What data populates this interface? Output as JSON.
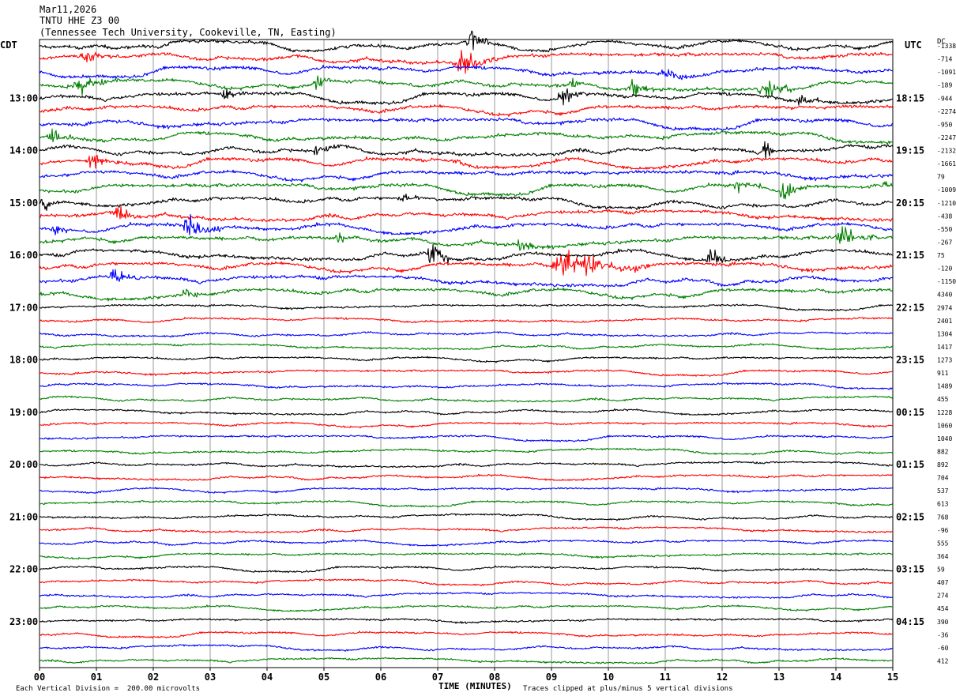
{
  "header": {
    "date": "Mar11,2026",
    "station": "TNTU HHE Z3 00",
    "location": "(Tennessee Tech University, Cookeville, TN, Easting)"
  },
  "labels": {
    "left_tz": "CDT",
    "right_tz": "UTC",
    "dc": "DC"
  },
  "footer": {
    "scale": "Each Vertical Division =  200.00 microvolts",
    "xlabel": "TIME (MINUTES)",
    "clip": "Traces clipped at plus/minus 5 vertical divisions"
  },
  "colors": [
    "#000000",
    "#ff0000",
    "#0000ff",
    "#008000"
  ],
  "chart_data": {
    "type": "line",
    "title": "TNTU HHE Z3 00",
    "xlabel": "TIME (MINUTES)",
    "xlim": [
      0,
      15
    ],
    "x_ticks": [
      "00",
      "01",
      "02",
      "03",
      "04",
      "05",
      "06",
      "07",
      "08",
      "09",
      "10",
      "11",
      "12",
      "13",
      "14",
      "15"
    ],
    "left_hour_labels": [
      "13:00",
      "14:00",
      "15:00",
      "16:00",
      "17:00",
      "18:00",
      "19:00",
      "20:00",
      "21:00",
      "22:00",
      "23:00"
    ],
    "right_hour_labels": [
      "18:15",
      "19:15",
      "20:15",
      "21:15",
      "22:15",
      "23:15",
      "00:15",
      "01:15",
      "02:15",
      "03:15",
      "04:15"
    ],
    "dc_offsets": [
      "-1338",
      "-714",
      "-1091",
      "-189",
      "-944",
      "-2274",
      "-950",
      "-2247",
      "-2132",
      "-1661",
      "79",
      "-1009",
      "-1210",
      "-438",
      "-550",
      "-267",
      "75",
      "-120",
      "-1150",
      "4340",
      "2974",
      "2401",
      "1304",
      "1417",
      "1273",
      "911",
      "1489",
      "455",
      "1228",
      "1060",
      "1040",
      "882",
      "892",
      "704",
      "537",
      "613",
      "768",
      "-96",
      "555",
      "364",
      "59",
      "407",
      "274",
      "454",
      "390",
      "-36",
      "-60",
      "412"
    ],
    "trace_count": 48,
    "events": [
      {
        "trace": 0,
        "start_min": 7.5,
        "end_min": 7.9,
        "amp_div": 3.0
      },
      {
        "trace": 1,
        "start_min": 0.7,
        "end_min": 1.3,
        "amp_div": 1.2
      },
      {
        "trace": 1,
        "start_min": 7.3,
        "end_min": 8.0,
        "amp_div": 2.5
      },
      {
        "trace": 2,
        "start_min": 10.9,
        "end_min": 11.5,
        "amp_div": 1.2
      },
      {
        "trace": 3,
        "start_min": 0.6,
        "end_min": 1.2,
        "amp_div": 2.0
      },
      {
        "trace": 3,
        "start_min": 4.8,
        "end_min": 5.2,
        "amp_div": 1.5
      },
      {
        "trace": 3,
        "start_min": 9.3,
        "end_min": 9.6,
        "amp_div": 1.2
      },
      {
        "trace": 3,
        "start_min": 10.3,
        "end_min": 10.8,
        "amp_div": 1.5
      },
      {
        "trace": 3,
        "start_min": 12.6,
        "end_min": 13.3,
        "amp_div": 1.8
      },
      {
        "trace": 4,
        "start_min": 3.2,
        "end_min": 3.6,
        "amp_div": 1.0
      },
      {
        "trace": 4,
        "start_min": 9.1,
        "end_min": 9.6,
        "amp_div": 1.8
      },
      {
        "trace": 4,
        "start_min": 13.3,
        "end_min": 13.7,
        "amp_div": 1.5
      },
      {
        "trace": 7,
        "start_min": 0.1,
        "end_min": 0.6,
        "amp_div": 1.2
      },
      {
        "trace": 8,
        "start_min": 4.8,
        "end_min": 5.3,
        "amp_div": 1.2
      },
      {
        "trace": 8,
        "start_min": 12.7,
        "end_min": 13.0,
        "amp_div": 2.5
      },
      {
        "trace": 9,
        "start_min": 0.8,
        "end_min": 1.4,
        "amp_div": 1.8
      },
      {
        "trace": 9,
        "start_min": 7.2,
        "end_min": 7.8,
        "amp_div": 0.6
      },
      {
        "trace": 11,
        "start_min": 12.2,
        "end_min": 12.7,
        "amp_div": 1.2
      },
      {
        "trace": 11,
        "start_min": 13.0,
        "end_min": 13.5,
        "amp_div": 2.0
      },
      {
        "trace": 11,
        "start_min": 14.8,
        "end_min": 15.0,
        "amp_div": 1.5
      },
      {
        "trace": 12,
        "start_min": 0.0,
        "end_min": 0.4,
        "amp_div": 1.2
      },
      {
        "trace": 12,
        "start_min": 6.3,
        "end_min": 6.7,
        "amp_div": 0.8
      },
      {
        "trace": 13,
        "start_min": 1.3,
        "end_min": 1.8,
        "amp_div": 1.5
      },
      {
        "trace": 14,
        "start_min": 0.2,
        "end_min": 0.6,
        "amp_div": 1.0
      },
      {
        "trace": 14,
        "start_min": 2.5,
        "end_min": 3.2,
        "amp_div": 2.0
      },
      {
        "trace": 15,
        "start_min": 5.2,
        "end_min": 5.6,
        "amp_div": 1.2
      },
      {
        "trace": 15,
        "start_min": 8.4,
        "end_min": 8.8,
        "amp_div": 2.0
      },
      {
        "trace": 15,
        "start_min": 14.0,
        "end_min": 14.7,
        "amp_div": 2.5
      },
      {
        "trace": 16,
        "start_min": 6.8,
        "end_min": 7.3,
        "amp_div": 2.5
      },
      {
        "trace": 16,
        "start_min": 11.7,
        "end_min": 12.2,
        "amp_div": 2.0
      },
      {
        "trace": 17,
        "start_min": 9.0,
        "end_min": 10.8,
        "amp_div": 2.5
      },
      {
        "trace": 18,
        "start_min": 1.2,
        "end_min": 1.8,
        "amp_div": 1.8
      },
      {
        "trace": 19,
        "start_min": 2.5,
        "end_min": 2.8,
        "amp_div": 1.2
      }
    ]
  }
}
